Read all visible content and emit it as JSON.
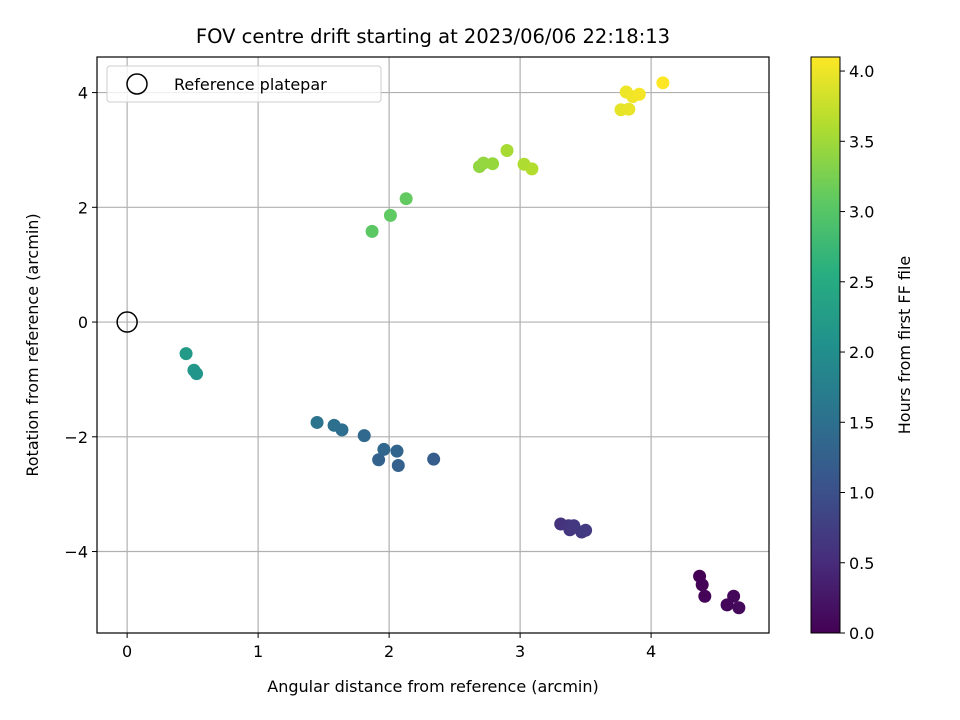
{
  "chart_data": {
    "type": "scatter",
    "title": "FOV centre drift starting at 2023/06/06 22:18:13",
    "xlabel": "Angular distance from reference (arcmin)",
    "ylabel": "Rotation from reference (arcmin)",
    "xlim": [
      -0.23,
      4.9
    ],
    "ylim": [
      -5.42,
      4.62
    ],
    "xticks": [
      0,
      1,
      2,
      3,
      4
    ],
    "yticks": [
      -4,
      -2,
      0,
      2,
      4
    ],
    "grid": true,
    "legend": {
      "position": "top-left",
      "entries": [
        "Reference platepar"
      ]
    },
    "reference_point": {
      "x": 0,
      "y": 0
    },
    "colorbar": {
      "label": "Hours from first FF file",
      "range": [
        0.0,
        4.1
      ],
      "ticks": [
        "0.0",
        "0.5",
        "1.0",
        "1.5",
        "2.0",
        "2.5",
        "3.0",
        "3.5",
        "4.0"
      ],
      "colormap": "viridis"
    },
    "points": [
      {
        "x": 4.37,
        "y": -4.43,
        "c": 0.0
      },
      {
        "x": 4.39,
        "y": -4.58,
        "c": 0.02
      },
      {
        "x": 4.41,
        "y": -4.78,
        "c": 0.04
      },
      {
        "x": 4.58,
        "y": -4.93,
        "c": 0.06
      },
      {
        "x": 4.63,
        "y": -4.78,
        "c": 0.08
      },
      {
        "x": 4.67,
        "y": -4.98,
        "c": 0.1
      },
      {
        "x": 3.31,
        "y": -3.52,
        "c": 0.6
      },
      {
        "x": 3.37,
        "y": -3.55,
        "c": 0.62
      },
      {
        "x": 3.38,
        "y": -3.62,
        "c": 0.64
      },
      {
        "x": 3.41,
        "y": -3.55,
        "c": 0.66
      },
      {
        "x": 3.47,
        "y": -3.66,
        "c": 0.68
      },
      {
        "x": 3.5,
        "y": -3.63,
        "c": 0.7
      },
      {
        "x": 1.45,
        "y": -1.75,
        "c": 1.55
      },
      {
        "x": 1.58,
        "y": -1.8,
        "c": 1.5
      },
      {
        "x": 1.64,
        "y": -1.88,
        "c": 1.48
      },
      {
        "x": 1.81,
        "y": -1.98,
        "c": 1.4
      },
      {
        "x": 1.92,
        "y": -2.4,
        "c": 1.3
      },
      {
        "x": 1.96,
        "y": -2.22,
        "c": 1.35
      },
      {
        "x": 2.06,
        "y": -2.25,
        "c": 1.33
      },
      {
        "x": 2.07,
        "y": -2.5,
        "c": 1.28
      },
      {
        "x": 2.34,
        "y": -2.39,
        "c": 1.2
      },
      {
        "x": 0.45,
        "y": -0.55,
        "c": 2.2
      },
      {
        "x": 0.51,
        "y": -0.84,
        "c": 2.15
      },
      {
        "x": 0.53,
        "y": -0.9,
        "c": 2.12
      },
      {
        "x": 1.87,
        "y": 1.58,
        "c": 3.05
      },
      {
        "x": 2.01,
        "y": 1.86,
        "c": 3.08
      },
      {
        "x": 2.13,
        "y": 2.15,
        "c": 3.1
      },
      {
        "x": 2.69,
        "y": 2.71,
        "c": 3.4
      },
      {
        "x": 2.72,
        "y": 2.77,
        "c": 3.42
      },
      {
        "x": 2.79,
        "y": 2.76,
        "c": 3.44
      },
      {
        "x": 2.9,
        "y": 2.99,
        "c": 3.55
      },
      {
        "x": 3.03,
        "y": 2.75,
        "c": 3.6
      },
      {
        "x": 3.09,
        "y": 2.67,
        "c": 3.62
      },
      {
        "x": 3.77,
        "y": 3.7,
        "c": 3.95
      },
      {
        "x": 3.81,
        "y": 4.01,
        "c": 4.0
      },
      {
        "x": 3.83,
        "y": 3.71,
        "c": 3.97
      },
      {
        "x": 3.86,
        "y": 3.93,
        "c": 4.02
      },
      {
        "x": 3.91,
        "y": 3.97,
        "c": 4.04
      },
      {
        "x": 4.09,
        "y": 4.17,
        "c": 4.1
      }
    ]
  }
}
